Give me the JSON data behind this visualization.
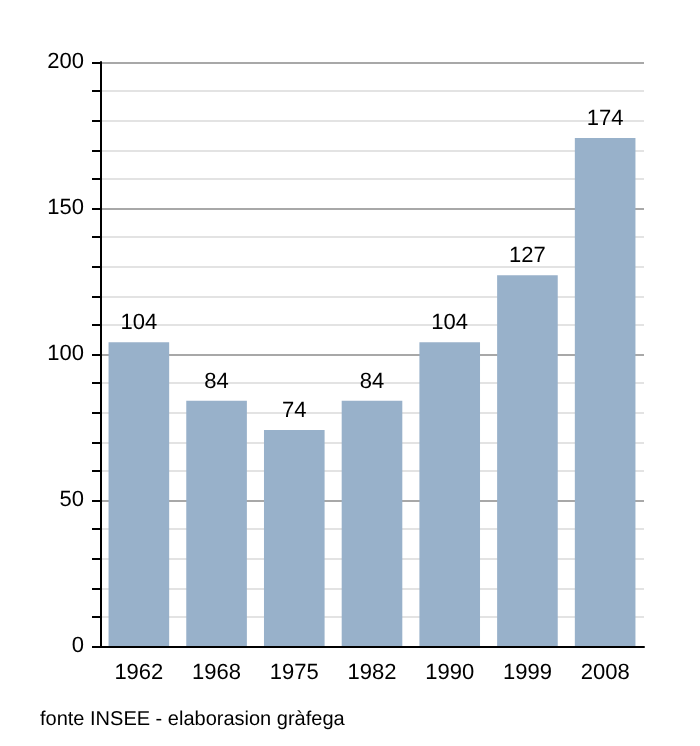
{
  "chart_data": {
    "type": "bar",
    "categories": [
      "1962",
      "1968",
      "1975",
      "1982",
      "1990",
      "1999",
      "2008"
    ],
    "values": [
      104,
      84,
      74,
      84,
      104,
      127,
      174
    ],
    "color": "#98b1ca",
    "ylim": [
      0,
      200
    ],
    "yticks": [
      0,
      {
        "value": 10,
        "label": null
      },
      {
        "value": 20,
        "label": null
      },
      {
        "value": 30,
        "label": null
      },
      {
        "value": 40,
        "label": null
      },
      50,
      {
        "value": 60,
        "label": null
      },
      {
        "value": 70,
        "label": null
      },
      {
        "value": 80,
        "label": null
      },
      {
        "value": 90,
        "label": null
      },
      100,
      {
        "value": 110,
        "label": null
      },
      {
        "value": 120,
        "label": null
      },
      {
        "value": 130,
        "label": null
      },
      {
        "value": 140,
        "label": null
      },
      150,
      {
        "value": 160,
        "label": null
      },
      {
        "value": 170,
        "label": null
      },
      {
        "value": 180,
        "label": null
      },
      {
        "value": 190,
        "label": null
      },
      200
    ],
    "grid": true,
    "data_labels": true,
    "annotations": [
      "fonte INSEE - elaborasion gràfega"
    ]
  }
}
